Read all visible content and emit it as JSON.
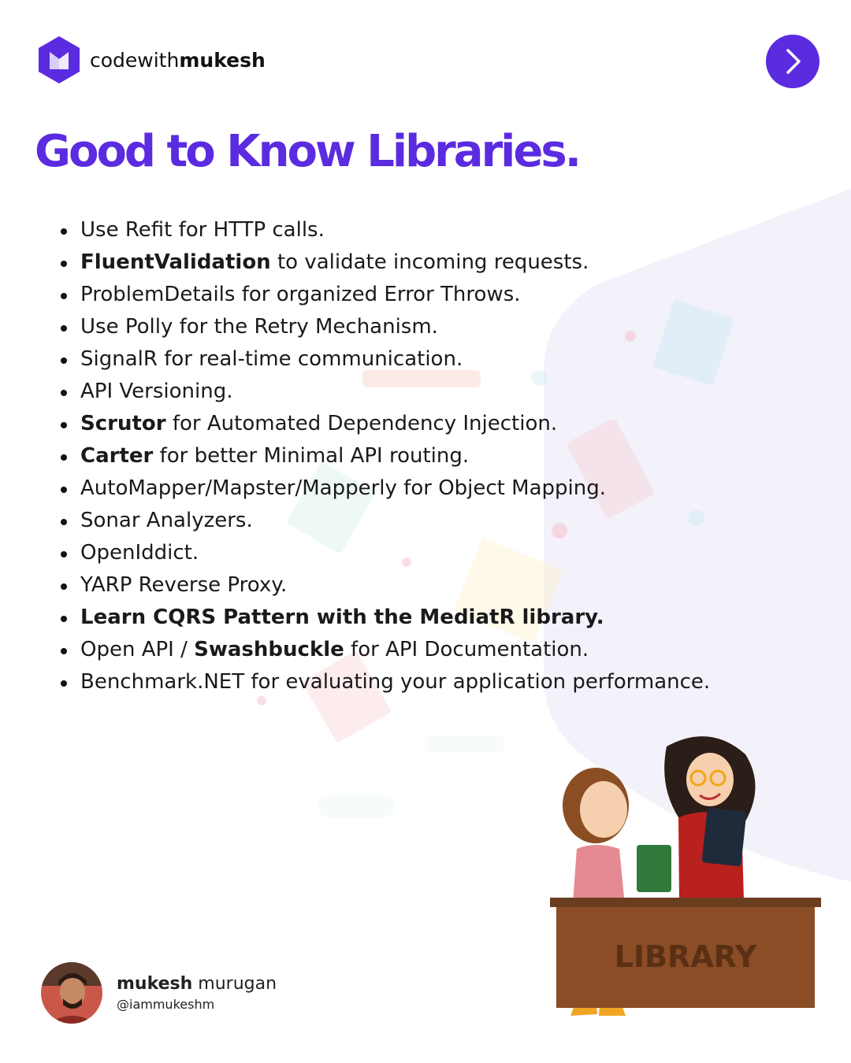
{
  "brand": {
    "prefix": "codewith",
    "name": "mukesh",
    "logo_icon": "m-hexagon-logo-icon"
  },
  "nav": {
    "next_icon": "chevron-right-icon",
    "accent": "#5b2be0"
  },
  "title": "Good to Know Libraries.",
  "items": [
    {
      "bold": "",
      "text": "Use Refit for HTTP calls.",
      "text2": "",
      "bold2": ""
    },
    {
      "bold": "FluentValidation",
      "text": " to validate incoming requests.",
      "bold2": "",
      "text2": ""
    },
    {
      "bold": "",
      "text": "ProblemDetails for organized Error Throws.",
      "bold2": "",
      "text2": ""
    },
    {
      "bold": "",
      "text": "Use Polly for the Retry Mechanism.",
      "bold2": "",
      "text2": ""
    },
    {
      "bold": "",
      "text": "SignalR for real-time communication.",
      "bold2": "",
      "text2": ""
    },
    {
      "bold": "",
      "text": "API Versioning.",
      "bold2": "",
      "text2": ""
    },
    {
      "bold": "Scrutor",
      "text": " for Automated Dependency Injection.",
      "bold2": "",
      "text2": ""
    },
    {
      "bold": "Carter",
      "text": " for better Minimal API routing.",
      "bold2": "",
      "text2": ""
    },
    {
      "bold": "",
      "text": "AutoMapper/Mapster/Mapperly for Object Mapping.",
      "bold2": "",
      "text2": ""
    },
    {
      "bold": "",
      "text": "Sonar Analyzers.",
      "bold2": "",
      "text2": ""
    },
    {
      "bold": "",
      "text": "OpenIddict.",
      "bold2": "",
      "text2": ""
    },
    {
      "bold": "",
      "text": "YARP Reverse Proxy.",
      "bold2": "",
      "text2": ""
    },
    {
      "bold": "Learn CQRS Pattern with the MediatR library.",
      "text": "",
      "bold2": "",
      "text2": ""
    },
    {
      "bold": "",
      "text": "Open API / ",
      "bold2": "Swashbuckle",
      "text2": " for API Documentation."
    },
    {
      "bold": "",
      "text": "Benchmark.NET for evaluating your application performance.",
      "bold2": "",
      "text2": ""
    }
  ],
  "author": {
    "first": "mukesh",
    "last": " murugan",
    "handle": "@iammukeshm",
    "avatar_icon": "author-avatar"
  },
  "illustration": {
    "sign": "LIBRARY"
  }
}
